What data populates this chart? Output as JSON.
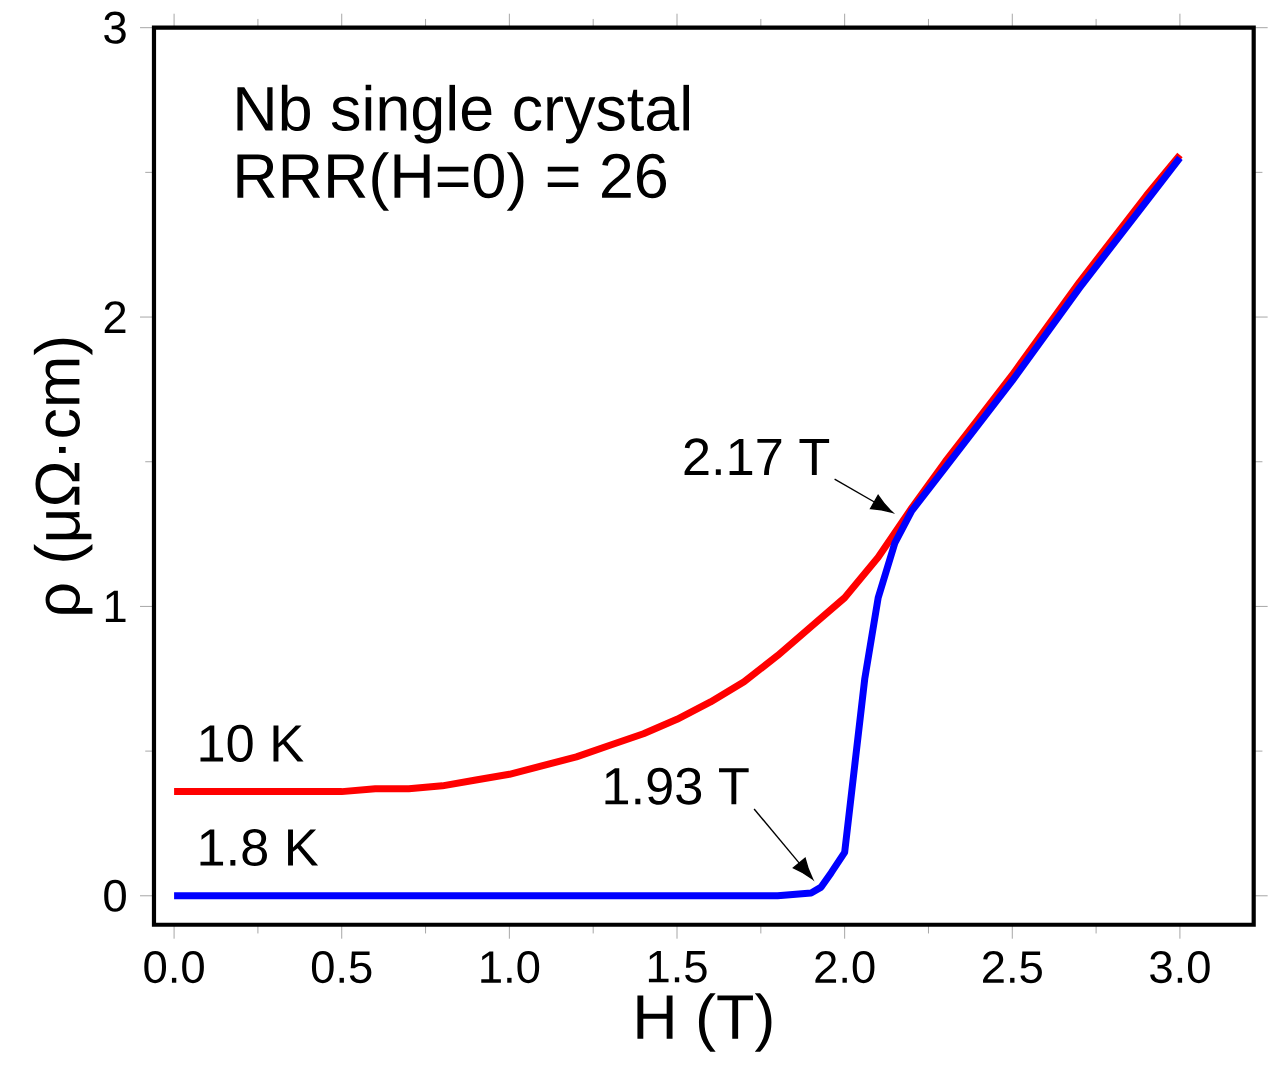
{
  "chart_data": {
    "type": "line",
    "xlabel": "H (T)",
    "ylabel": "ρ (μΩ·cm)",
    "marker": "none",
    "xlim": [
      -0.06,
      3.22
    ],
    "ylim": [
      -0.1,
      3
    ],
    "xticks": [
      {
        "value": 0,
        "label": "0.0"
      },
      {
        "value": 0.5,
        "label": "0.5"
      },
      {
        "value": 1,
        "label": "1.0"
      },
      {
        "value": 1.5,
        "label": "1.5"
      },
      {
        "value": 2,
        "label": "2.0"
      },
      {
        "value": 2.5,
        "label": "2.5"
      },
      {
        "value": 3,
        "label": "3.0"
      }
    ],
    "yticks": [
      0,
      1,
      2,
      3
    ],
    "annotations": [
      "Nb single crystal",
      "RRR(H=0) = 26",
      {
        "text": "2.17 T",
        "x": 2.17,
        "y": 1.3
      },
      {
        "text": "1.93 T",
        "x": 1.93,
        "y": 0.03
      }
    ],
    "series": [
      {
        "name": "10 K",
        "color": "#ff0000",
        "x": [
          0,
          0.1,
          0.2,
          0.3,
          0.4,
          0.5,
          0.6,
          0.7,
          0.8,
          0.9,
          1.0,
          1.1,
          1.2,
          1.3,
          1.4,
          1.5,
          1.6,
          1.7,
          1.8,
          1.9,
          2.0,
          2.1,
          2.2,
          2.3,
          2.4,
          2.5,
          2.6,
          2.7,
          2.8,
          2.9,
          3.0
        ],
        "values": [
          0.36,
          0.36,
          0.36,
          0.36,
          0.36,
          0.36,
          0.37,
          0.37,
          0.38,
          0.4,
          0.42,
          0.45,
          0.48,
          0.52,
          0.56,
          0.61,
          0.67,
          0.74,
          0.83,
          0.93,
          1.03,
          1.17,
          1.34,
          1.5,
          1.65,
          1.8,
          1.96,
          2.12,
          2.27,
          2.42,
          2.56
        ]
      },
      {
        "name": "1.8 K",
        "color": "#0000ff",
        "x": [
          0,
          0.2,
          0.4,
          0.6,
          0.8,
          1.0,
          1.2,
          1.4,
          1.6,
          1.8,
          1.9,
          1.93,
          1.96,
          2.0,
          2.03,
          2.06,
          2.1,
          2.15,
          2.2,
          2.3,
          2.4,
          2.5,
          2.6,
          2.7,
          2.8,
          2.9,
          3.0
        ],
        "values": [
          0,
          0,
          0,
          0,
          0,
          0,
          0,
          0,
          0,
          0,
          0.01,
          0.03,
          0.08,
          0.15,
          0.45,
          0.75,
          1.03,
          1.22,
          1.33,
          1.48,
          1.63,
          1.78,
          1.94,
          2.1,
          2.25,
          2.4,
          2.55
        ]
      }
    ]
  }
}
